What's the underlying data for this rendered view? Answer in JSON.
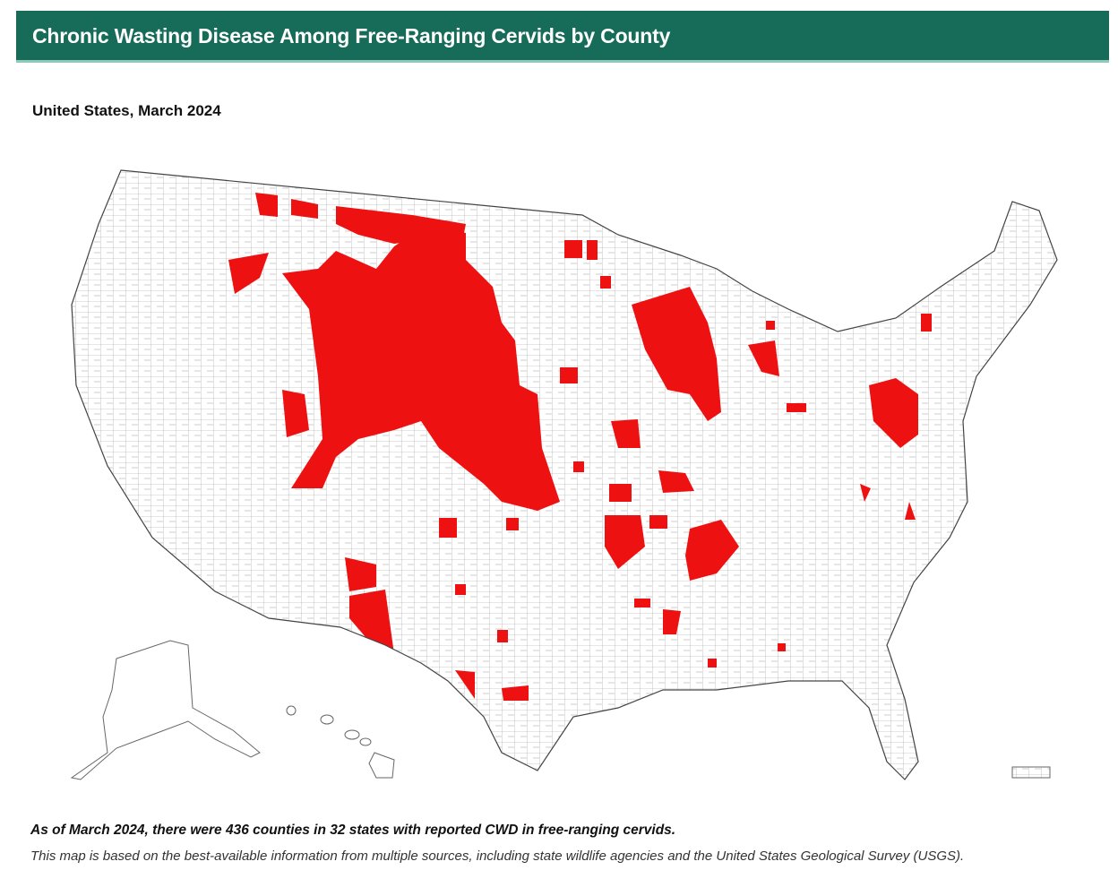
{
  "header": {
    "title": "Chronic Wasting Disease Among Free-Ranging Cervids by County"
  },
  "subtitle": "United States, March 2024",
  "footnote": {
    "summary": "As of March 2024, there were 436 counties in 32 states with reported CWD in free-ranging cervids.",
    "source": "This map is based on the best-available information from multiple sources, including state wildlife agencies and the United States Geological Survey (USGS)."
  }
}
